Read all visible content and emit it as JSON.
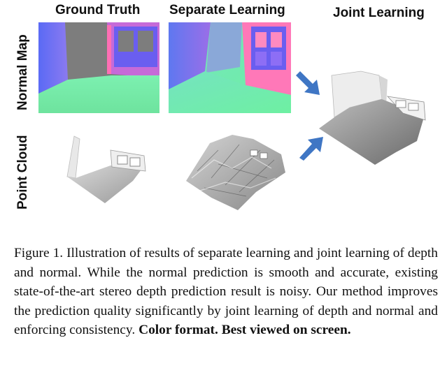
{
  "figure": {
    "columns": {
      "ground_truth": "Ground Truth",
      "separate": "Separate Learning",
      "joint": "Joint Learning"
    },
    "rows": {
      "normal": "Normal Map",
      "point_cloud": "Point Cloud"
    },
    "colors": {
      "arrow": "#3f76c4",
      "normal_floor": "#6ee8a8",
      "normal_wall_blue": "#6a5ef0",
      "normal_wall_pink": "#ff6fb4",
      "gray_wall": "#7d7d7d"
    }
  },
  "caption": {
    "text": "Figure 1. Illustration of results of separate learning and joint learning of depth and normal.  While the normal prediction is smooth and accurate, existing state-of-the-art stereo depth prediction result is noisy.  Our method improves the prediction quality significantly by joint learning of depth and normal and enforcing consistency.",
    "bold": "Color format. Best viewed on screen."
  }
}
